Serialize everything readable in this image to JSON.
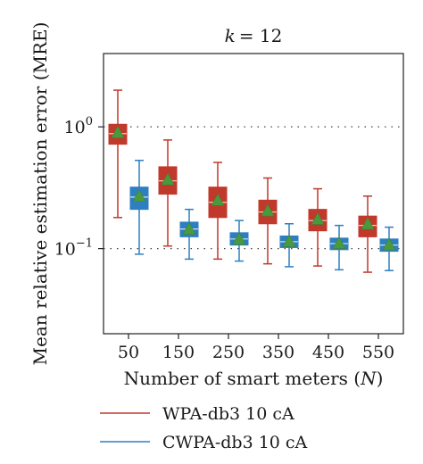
{
  "chart_data": {
    "type": "box",
    "title_prefix": "k",
    "title_value": "= 12",
    "xlabel_text": "Number of smart meters (",
    "xlabel_var": "N",
    "xlabel_close": ")",
    "ylabel": "Mean relative estimation error (MRE)",
    "categories": [
      "50",
      "150",
      "250",
      "350",
      "450",
      "550"
    ],
    "y_scale": "log",
    "ylim": [
      0.02,
      4.0
    ],
    "y_ticks": [
      {
        "value": 1.0,
        "base": "10",
        "exp": "0"
      },
      {
        "value": 0.1,
        "base": "10",
        "exp": "−1"
      }
    ],
    "grid": "dotted horizontal at 10^0 and 10^-1",
    "legend_position": "bottom",
    "mean_marker_color": "#4a9a3c",
    "series": [
      {
        "name": "WPA-db3 10 cA",
        "color": "#c0392b",
        "boxes": [
          {
            "whisker_low": 0.18,
            "q1": 0.72,
            "median": 0.88,
            "q3": 1.05,
            "whisker_high": 2.0,
            "mean": 0.9
          },
          {
            "whisker_low": 0.105,
            "q1": 0.28,
            "median": 0.36,
            "q3": 0.47,
            "whisker_high": 0.78,
            "mean": 0.37
          },
          {
            "whisker_low": 0.082,
            "q1": 0.18,
            "median": 0.24,
            "q3": 0.32,
            "whisker_high": 0.51,
            "mean": 0.25
          },
          {
            "whisker_low": 0.075,
            "q1": 0.16,
            "median": 0.2,
            "q3": 0.25,
            "whisker_high": 0.38,
            "mean": 0.205
          },
          {
            "whisker_low": 0.072,
            "q1": 0.14,
            "median": 0.17,
            "q3": 0.21,
            "whisker_high": 0.31,
            "mean": 0.175
          },
          {
            "whisker_low": 0.064,
            "q1": 0.125,
            "median": 0.155,
            "q3": 0.185,
            "whisker_high": 0.27,
            "mean": 0.16
          }
        ]
      },
      {
        "name": "CWPA-db3 10 cA",
        "color": "#2e7fc1",
        "boxes": [
          {
            "whisker_low": 0.09,
            "q1": 0.21,
            "median": 0.265,
            "q3": 0.32,
            "whisker_high": 0.53,
            "mean": 0.27
          },
          {
            "whisker_low": 0.082,
            "q1": 0.125,
            "median": 0.145,
            "q3": 0.165,
            "whisker_high": 0.21,
            "mean": 0.145
          },
          {
            "whisker_low": 0.079,
            "q1": 0.107,
            "median": 0.12,
            "q3": 0.135,
            "whisker_high": 0.17,
            "mean": 0.12
          },
          {
            "whisker_low": 0.071,
            "q1": 0.102,
            "median": 0.114,
            "q3": 0.127,
            "whisker_high": 0.16,
            "mean": 0.115
          },
          {
            "whisker_low": 0.067,
            "q1": 0.098,
            "median": 0.11,
            "q3": 0.122,
            "whisker_high": 0.155,
            "mean": 0.111
          },
          {
            "whisker_low": 0.066,
            "q1": 0.095,
            "median": 0.107,
            "q3": 0.12,
            "whisker_high": 0.15,
            "mean": 0.108
          }
        ]
      }
    ]
  }
}
